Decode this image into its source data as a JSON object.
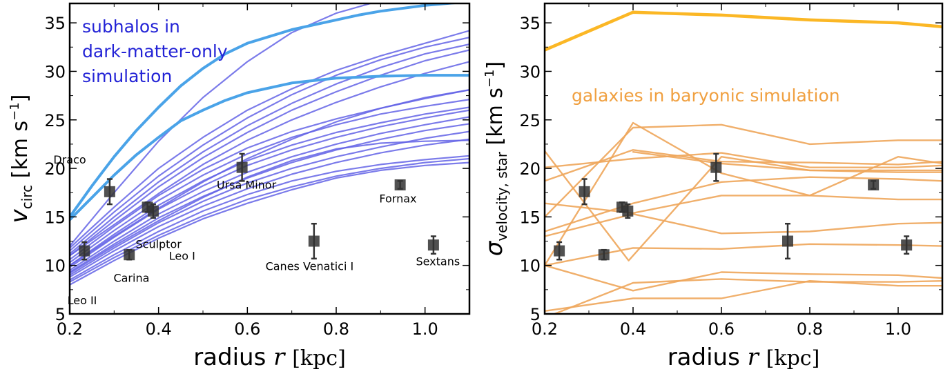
{
  "chart_data": [
    {
      "type": "line",
      "xlabel_text": "radius",
      "xlabel_var": "r",
      "xlabel_unit": "[kpc]",
      "ylabel_var": "v",
      "ylabel_sub": "circ",
      "ylabel_unit": "[km s",
      "ylabel_unit_sup": "−1",
      "ylabel_unit_close": "]",
      "xlim": [
        0.2,
        1.1
      ],
      "ylim": [
        5,
        37
      ],
      "xticks": [
        0.2,
        0.4,
        0.6,
        0.8,
        1.0
      ],
      "xtick_labels": [
        "0.2",
        "0.4",
        "0.6",
        "0.8",
        "1.0"
      ],
      "yticks": [
        5,
        10,
        15,
        20,
        25,
        30,
        35
      ],
      "ytick_labels": [
        "5",
        "10",
        "15",
        "20",
        "25",
        "30",
        "35"
      ],
      "annotation": [
        "subhalos in",
        "dark-matter-only",
        "simulation"
      ],
      "annotation_color": "#2323d6",
      "line_color_light": "#4aa3e8",
      "line_color_dark": "#6464e6",
      "series_light": [
        {
          "x": [
            0.2,
            0.25,
            0.3,
            0.35,
            0.4,
            0.45,
            0.5,
            0.55,
            0.6,
            0.7,
            0.8,
            0.85,
            0.9,
            1.0,
            1.05,
            1.1
          ],
          "y": [
            15.0,
            18.2,
            21.2,
            23.9,
            26.3,
            28.5,
            30.3,
            31.8,
            32.9,
            34.3,
            35.3,
            35.8,
            36.2,
            36.8,
            37.0,
            37.2
          ]
        },
        {
          "x": [
            0.2,
            0.25,
            0.3,
            0.35,
            0.4,
            0.45,
            0.5,
            0.55,
            0.6,
            0.7,
            0.8,
            0.9,
            1.0,
            1.1
          ],
          "y": [
            14.7,
            17.0,
            19.3,
            21.4,
            23.2,
            24.9,
            26.0,
            27.0,
            27.8,
            28.8,
            29.3,
            29.5,
            29.6,
            29.6
          ]
        }
      ],
      "series_dark": [
        {
          "x": [
            0.2,
            0.3,
            0.4,
            0.5,
            0.6,
            0.7,
            0.8,
            0.9,
            0.95
          ],
          "y": [
            12.0,
            17.5,
            22.8,
            27.3,
            31.0,
            34.0,
            36.0,
            37.3,
            37.8
          ]
        },
        {
          "x": [
            0.2,
            0.3,
            0.4,
            0.5,
            0.6,
            0.7,
            0.8,
            0.9,
            1.0,
            1.1
          ],
          "y": [
            11.8,
            16.0,
            20.0,
            23.2,
            26.0,
            28.2,
            30.1,
            31.6,
            32.9,
            34.2
          ]
        },
        {
          "x": [
            0.2,
            0.3,
            0.4,
            0.5,
            0.6,
            0.7,
            0.8,
            0.9,
            1.0,
            1.1
          ],
          "y": [
            11.5,
            15.5,
            19.2,
            22.4,
            25.2,
            27.6,
            29.6,
            31.2,
            32.5,
            33.5
          ]
        },
        {
          "x": [
            0.2,
            0.3,
            0.4,
            0.5,
            0.6,
            0.7,
            0.8,
            0.9,
            1.0,
            1.1
          ],
          "y": [
            11.2,
            15.0,
            18.6,
            21.7,
            24.4,
            26.7,
            28.7,
            30.4,
            31.8,
            32.8
          ]
        },
        {
          "x": [
            0.2,
            0.3,
            0.4,
            0.5,
            0.6,
            0.7,
            0.8,
            0.9,
            1.0,
            1.1
          ],
          "y": [
            11.0,
            14.6,
            18.1,
            21.1,
            23.7,
            26.0,
            27.9,
            29.6,
            31.1,
            32.2
          ]
        },
        {
          "x": [
            0.2,
            0.3,
            0.4,
            0.5,
            0.6,
            0.7,
            0.8,
            0.9,
            1.0,
            1.1
          ],
          "y": [
            10.6,
            14.0,
            17.2,
            19.9,
            22.1,
            23.8,
            25.1,
            26.2,
            27.2,
            28.1
          ]
        },
        {
          "x": [
            0.2,
            0.3,
            0.4,
            0.5,
            0.6,
            0.7,
            0.8,
            0.9,
            1.0,
            1.1
          ],
          "y": [
            10.3,
            13.6,
            16.7,
            19.3,
            21.5,
            23.2,
            24.5,
            25.6,
            26.4,
            27.1
          ]
        },
        {
          "x": [
            0.2,
            0.3,
            0.4,
            0.5,
            0.6,
            0.7,
            0.8,
            0.9,
            1.0,
            1.1
          ],
          "y": [
            10.0,
            13.2,
            16.2,
            18.7,
            20.8,
            22.4,
            23.7,
            24.7,
            25.6,
            26.3
          ]
        },
        {
          "x": [
            0.2,
            0.3,
            0.4,
            0.5,
            0.6,
            0.7,
            0.8,
            0.9,
            1.0,
            1.1
          ],
          "y": [
            9.8,
            12.9,
            15.8,
            18.2,
            20.3,
            21.9,
            23.2,
            24.3,
            25.2,
            26.0
          ]
        },
        {
          "x": [
            0.2,
            0.3,
            0.4,
            0.5,
            0.6,
            0.7,
            0.8,
            0.9,
            1.0,
            1.1
          ],
          "y": [
            9.5,
            12.5,
            15.3,
            17.6,
            19.6,
            21.2,
            22.5,
            23.6,
            24.5,
            25.3
          ]
        },
        {
          "x": [
            0.2,
            0.3,
            0.4,
            0.5,
            0.6,
            0.7,
            0.8,
            0.9,
            1.0,
            1.1
          ],
          "y": [
            9.3,
            12.2,
            14.9,
            17.1,
            19.0,
            20.6,
            21.9,
            23.0,
            23.9,
            24.6
          ]
        },
        {
          "x": [
            0.2,
            0.3,
            0.4,
            0.5,
            0.6,
            0.7,
            0.8,
            0.9,
            1.0,
            1.1
          ],
          "y": [
            9.0,
            11.8,
            14.4,
            16.6,
            18.5,
            20.0,
            21.2,
            22.2,
            23.1,
            23.8
          ]
        },
        {
          "x": [
            0.2,
            0.3,
            0.4,
            0.5,
            0.6,
            0.7,
            0.8,
            0.9,
            1.0,
            1.1
          ],
          "y": [
            8.8,
            11.5,
            14.0,
            16.1,
            17.9,
            19.4,
            20.6,
            21.6,
            22.4,
            23.0
          ]
        },
        {
          "x": [
            0.2,
            0.3,
            0.4,
            0.5,
            0.6,
            0.7,
            0.8,
            0.9,
            1.0,
            1.1
          ],
          "y": [
            8.5,
            11.1,
            13.5,
            15.6,
            17.3,
            18.7,
            19.7,
            20.4,
            20.9,
            21.3
          ]
        },
        {
          "x": [
            0.2,
            0.3,
            0.4,
            0.5,
            0.6,
            0.7,
            0.8,
            0.9,
            1.0,
            1.1
          ],
          "y": [
            8.3,
            10.8,
            13.1,
            15.1,
            16.8,
            18.1,
            19.2,
            20.0,
            20.6,
            21.0
          ]
        },
        {
          "x": [
            0.2,
            0.3,
            0.4,
            0.5,
            0.6,
            0.7,
            0.8,
            0.9,
            1.0,
            1.1
          ],
          "y": [
            8.0,
            10.5,
            12.8,
            14.8,
            16.4,
            17.8,
            19.0,
            19.8,
            20.3,
            20.6
          ]
        },
        {
          "x": [
            0.2,
            0.3,
            0.4,
            0.5,
            0.6,
            0.7,
            0.8,
            0.9,
            1.0,
            1.1
          ],
          "y": [
            10.0,
            13.0,
            15.9,
            18.6,
            21.0,
            23.0,
            24.8,
            26.2,
            27.3,
            28.1
          ]
        },
        {
          "x": [
            0.2,
            0.3,
            0.4,
            0.5,
            0.6,
            0.7,
            0.8,
            0.9,
            1.0,
            1.1
          ],
          "y": [
            11.0,
            14.2,
            17.4,
            20.4,
            22.9,
            25.0,
            26.8,
            28.4,
            29.8,
            31.0
          ]
        },
        {
          "x": [
            0.2,
            0.3,
            0.4,
            0.5,
            0.6,
            0.7,
            0.8,
            0.9,
            1.0,
            1.1
          ],
          "y": [
            9.2,
            12.0,
            14.6,
            17.0,
            19.1,
            20.8,
            22.0,
            22.6,
            22.8,
            22.9
          ]
        }
      ],
      "points": [
        {
          "name": "Draco",
          "x": 0.29,
          "y": 17.6,
          "err": 1.3
        },
        {
          "name": "Leo II",
          "x": 0.233,
          "y": 11.5,
          "err": 0.9
        },
        {
          "name": "Carina",
          "x": 0.334,
          "y": 11.1,
          "err": 0.5
        },
        {
          "name": "Sculptor",
          "x": 0.375,
          "y": 16.0,
          "err": 0.5
        },
        {
          "name": "Leo I",
          "x": 0.388,
          "y": 15.6,
          "err": 0.7
        },
        {
          "name": "Ursa Minor",
          "x": 0.588,
          "y": 20.1,
          "err": 1.4
        },
        {
          "name": "Canes Venatici I",
          "x": 0.75,
          "y": 12.5,
          "err": 1.8
        },
        {
          "name": "Fornax",
          "x": 0.944,
          "y": 18.3,
          "err": 0.4
        },
        {
          "name": "Sextans",
          "x": 1.019,
          "y": 12.1,
          "err": 0.9
        }
      ],
      "point_label_offsets": {
        "Draco": [
          -0.09,
          2.9
        ],
        "Leo II": [
          -0.005,
          -5.5
        ],
        "Carina": [
          0.005,
          -2.8
        ],
        "Sculptor": [
          0.025,
          -4.2
        ],
        "Leo I": [
          0.065,
          -5.0
        ],
        "Ursa Minor": [
          0.01,
          -2.2
        ],
        "Canes Venatici I": [
          -0.01,
          -3.0
        ],
        "Fornax": [
          -0.005,
          -1.8
        ],
        "Sextans": [
          0.01,
          -2.1
        ]
      }
    },
    {
      "type": "line",
      "xlabel_text": "radius",
      "xlabel_var": "r",
      "xlabel_unit": "[kpc]",
      "ylabel_var": "σ",
      "ylabel_sub": "velocity, star",
      "ylabel_unit": "[km s",
      "ylabel_unit_sup": "−1",
      "ylabel_unit_close": "]",
      "xlim": [
        0.2,
        1.1
      ],
      "ylim": [
        5,
        37
      ],
      "xticks": [
        0.2,
        0.4,
        0.6,
        0.8,
        1.0
      ],
      "xtick_labels": [
        "0.2",
        "0.4",
        "0.6",
        "0.8",
        "1.0"
      ],
      "yticks": [
        5,
        10,
        15,
        20,
        25,
        30,
        35
      ],
      "ytick_labels": [
        "5",
        "10",
        "15",
        "20",
        "25",
        "30",
        "35"
      ],
      "annotation": [
        "galaxies in baryonic simulation"
      ],
      "annotation_color": "#f0a040",
      "line_color_bold": "#fbb725",
      "line_color": "#eea65b",
      "series_bold": [
        {
          "x": [
            0.2,
            0.4,
            0.6,
            0.8,
            1.0,
            1.1
          ],
          "y": [
            32.2,
            36.1,
            35.8,
            35.3,
            35.0,
            34.6
          ]
        }
      ],
      "series": [
        {
          "x": [
            0.2,
            0.4,
            0.6,
            0.8,
            1.0,
            1.1
          ],
          "y": [
            10.0,
            24.7,
            19.5,
            17.2,
            21.2,
            20.5
          ]
        },
        {
          "x": [
            0.2,
            0.39,
            0.6,
            0.8,
            1.0,
            1.1
          ],
          "y": [
            21.8,
            10.5,
            21.2,
            19.8,
            19.6,
            19.6
          ]
        },
        {
          "x": [
            0.2,
            0.4,
            0.6,
            0.8,
            1.0,
            1.1
          ],
          "y": [
            20.1,
            21.0,
            21.6,
            20.1,
            20.1,
            20.3
          ]
        },
        {
          "x": [
            0.2,
            0.4,
            0.6,
            0.8,
            1.0,
            1.1
          ],
          "y": [
            18.7,
            21.9,
            20.7,
            20.6,
            20.4,
            20.7
          ]
        },
        {
          "x": [
            0.4,
            0.6,
            0.8,
            1.0,
            1.1
          ],
          "y": [
            21.7,
            20.5,
            19.8,
            19.8,
            19.8
          ]
        },
        {
          "x": [
            0.2,
            0.4,
            0.6,
            0.8,
            1.0,
            1.1
          ],
          "y": [
            15.0,
            24.2,
            24.5,
            22.5,
            22.9,
            22.9
          ]
        },
        {
          "x": [
            0.2,
            0.4,
            0.6,
            0.8,
            1.0,
            1.1
          ],
          "y": [
            16.4,
            15.4,
            17.2,
            17.2,
            16.8,
            16.8
          ]
        },
        {
          "x": [
            0.2,
            0.4,
            0.6,
            0.8,
            1.0,
            1.1
          ],
          "y": [
            13.5,
            16.4,
            18.6,
            19.1,
            18.9,
            18.7
          ]
        },
        {
          "x": [
            0.2,
            0.4,
            0.6,
            0.8,
            1.0,
            1.1
          ],
          "y": [
            13.0,
            15.3,
            13.3,
            13.5,
            14.3,
            14.4
          ]
        },
        {
          "x": [
            0.2,
            0.4,
            0.6,
            0.8,
            1.0,
            1.1
          ],
          "y": [
            10.0,
            11.8,
            11.7,
            12.2,
            12.1,
            12.0
          ]
        },
        {
          "x": [
            0.2,
            0.4,
            0.6,
            0.8,
            1.0,
            1.1
          ],
          "y": [
            10.0,
            7.4,
            9.3,
            9.1,
            9.0,
            8.7
          ]
        },
        {
          "x": [
            0.2,
            0.4,
            0.6,
            0.8,
            1.0,
            1.1
          ],
          "y": [
            4.6,
            8.2,
            8.6,
            8.3,
            8.3,
            8.4
          ]
        },
        {
          "x": [
            0.2,
            0.4,
            0.6,
            0.8,
            1.0,
            1.1
          ],
          "y": [
            5.3,
            6.6,
            6.6,
            8.4,
            7.9,
            7.9
          ]
        }
      ],
      "points": [
        {
          "x": 0.29,
          "y": 17.6,
          "err": 1.3
        },
        {
          "x": 0.233,
          "y": 11.5,
          "err": 0.9
        },
        {
          "x": 0.334,
          "y": 11.1,
          "err": 0.5
        },
        {
          "x": 0.375,
          "y": 16.0,
          "err": 0.5
        },
        {
          "x": 0.388,
          "y": 15.6,
          "err": 0.7
        },
        {
          "x": 0.588,
          "y": 20.1,
          "err": 1.4
        },
        {
          "x": 0.75,
          "y": 12.5,
          "err": 1.8
        },
        {
          "x": 0.944,
          "y": 18.3,
          "err": 0.4
        },
        {
          "x": 1.019,
          "y": 12.1,
          "err": 0.9
        }
      ]
    }
  ]
}
